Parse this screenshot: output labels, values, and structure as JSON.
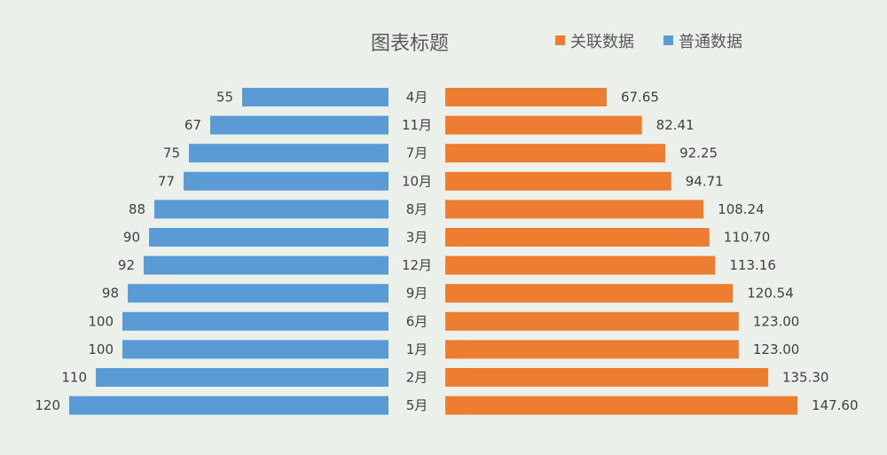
{
  "chart_data": {
    "type": "bar",
    "orientation": "horizontal-butterfly",
    "title": "图表标题",
    "categories": [
      "4月",
      "11月",
      "7月",
      "10月",
      "8月",
      "3月",
      "12月",
      "9月",
      "6月",
      "1月",
      "2月",
      "5月"
    ],
    "series": [
      {
        "name": "关联数据",
        "side": "right",
        "color": "#ed7d31",
        "values": [
          67.65,
          82.41,
          92.25,
          94.71,
          108.24,
          110.7,
          113.16,
          120.54,
          123.0,
          123.0,
          135.3,
          147.6
        ],
        "labels": [
          "67.65",
          "82.41",
          "92.25",
          "94.71",
          "108.24",
          "110.70",
          "113.16",
          "120.54",
          "123.00",
          "123.00",
          "135.30",
          "147.60"
        ]
      },
      {
        "name": "普通数据",
        "side": "left",
        "color": "#5b9bd5",
        "values": [
          55,
          67,
          75,
          77,
          88,
          90,
          92,
          98,
          100,
          100,
          110,
          120
        ],
        "labels": [
          "55",
          "67",
          "75",
          "77",
          "88",
          "90",
          "92",
          "98",
          "100",
          "100",
          "110",
          "120"
        ]
      }
    ],
    "legend": "top-right",
    "grid": false
  }
}
